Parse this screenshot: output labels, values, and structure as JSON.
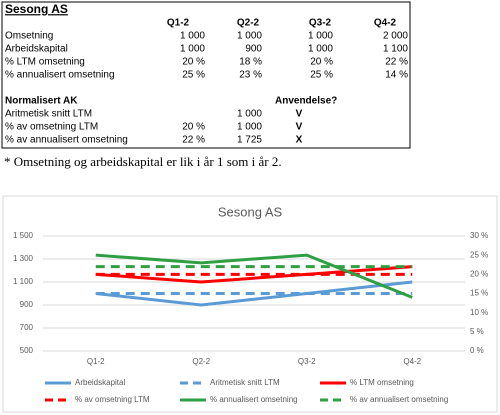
{
  "table": {
    "title": "Sesong AS",
    "columns": [
      "Q1-2",
      "Q2-2",
      "Q3-2",
      "Q4-2"
    ],
    "rows": [
      [
        "Omsetning",
        "1 000",
        "1 000",
        "1 000",
        "2 000"
      ],
      [
        "Arbeidskapital",
        "1 000",
        "900",
        "1 000",
        "1 100"
      ],
      [
        "% LTM omsetning",
        "20 %",
        "18 %",
        "20 %",
        "22 %"
      ],
      [
        "% annualisert omsetning",
        "25 %",
        "23 %",
        "25 %",
        "14 %"
      ]
    ],
    "section": {
      "title": "Normalisert AK",
      "column": "Anvendelse?",
      "rows": [
        [
          "Aritmetisk snitt LTM",
          null,
          "1 000",
          "V"
        ],
        [
          "% av omsetning LTM",
          "20 %",
          "1 000",
          "V"
        ],
        [
          "% av annualisert omsetning",
          "22 %",
          "1 725",
          "X"
        ]
      ],
      "verdict_colors": [
        "#000000",
        "#000000",
        "#e00000"
      ]
    }
  },
  "note": "* Omsetning og arbeidskapital er lik i år 1 som i år 2.",
  "chart_data": {
    "type": "line",
    "title": "Sesong AS",
    "categories": [
      "Q1-2",
      "Q2-2",
      "Q3-2",
      "Q4-2"
    ],
    "ylim": [
      500,
      1500
    ],
    "yticks": [
      {
        "value": 500,
        "label": "500"
      },
      {
        "value": 700,
        "label": "700"
      },
      {
        "value": 900,
        "label": "900"
      },
      {
        "value": 1100,
        "label": "1 100"
      },
      {
        "value": 1300,
        "label": "1 300"
      },
      {
        "value": 1500,
        "label": "1 500"
      }
    ],
    "y2lim": [
      0,
      30
    ],
    "y2ticks": [
      {
        "value": 0,
        "label": "0 %"
      },
      {
        "value": 5,
        "label": "5 %"
      },
      {
        "value": 10,
        "label": "10 %"
      },
      {
        "value": 15,
        "label": "15 %"
      },
      {
        "value": 20,
        "label": "20 %"
      },
      {
        "value": 25,
        "label": "25 %"
      },
      {
        "value": 30,
        "label": "30 %"
      }
    ],
    "grid": true,
    "legend": "bottom",
    "series": [
      {
        "name": "Arbeidskapital",
        "color": "#5b9bd5",
        "dash": false,
        "values": [
          1000,
          900,
          1000,
          1100
        ]
      },
      {
        "name": "Aritmetisk snitt LTM",
        "color": "#5b9bd5",
        "dash": true,
        "values": [
          1000,
          1000,
          1000,
          1000
        ]
      },
      {
        "name": "% LTM omsetning",
        "color": "#ff0000",
        "dash": false,
        "axis": "y2",
        "values": [
          20,
          18,
          20,
          22
        ]
      },
      {
        "name": "% av omsetning LTM",
        "color": "#ff0000",
        "dash": true,
        "axis": "y2",
        "values": [
          20,
          20,
          20,
          20
        ]
      },
      {
        "name": "% annualisert omsetning",
        "color": "#2ea043",
        "dash": false,
        "axis": "y2",
        "values": [
          25,
          23,
          25,
          14
        ]
      },
      {
        "name": "% av annualisert omsetning",
        "color": "#2ea043",
        "dash": true,
        "axis": "y2",
        "values": [
          22,
          22,
          22,
          22
        ]
      }
    ]
  }
}
